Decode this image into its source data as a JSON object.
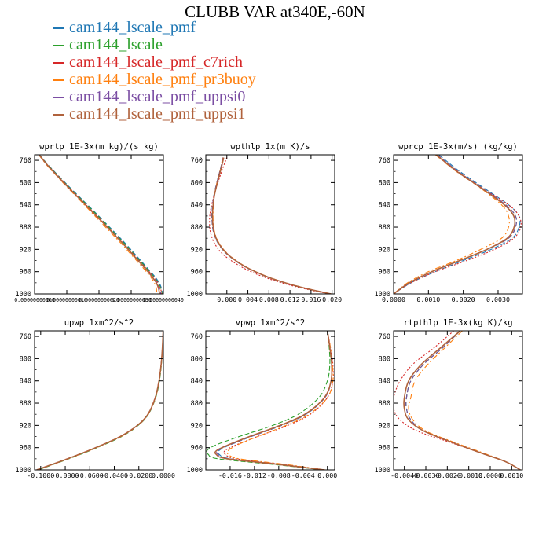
{
  "page_title": "CLUBB VAR at340E,-60N",
  "colors": {
    "cam144_lscale_pmf": "#1f77b4",
    "cam144_lscale": "#2ca02c",
    "cam144_lscale_pmf_c7rich": "#d62728",
    "cam144_lscale_pmf_pr3buoy": "#ff7f0e",
    "cam144_lscale_pmf_uppsi0": "#7b4ea3",
    "cam144_lscale_pmf_uppsi1": "#b0623c"
  },
  "legend": [
    {
      "name": "cam144_lscale_pmf",
      "color": "#1f77b4",
      "style": "dashed"
    },
    {
      "name": "cam144_lscale",
      "color": "#2ca02c",
      "style": "dashed"
    },
    {
      "name": "cam144_lscale_pmf_c7rich",
      "color": "#d62728",
      "style": "dotted"
    },
    {
      "name": "cam144_lscale_pmf_pr3buoy",
      "color": "#ff7f0e",
      "style": "dashdot"
    },
    {
      "name": "cam144_lscale_pmf_uppsi0",
      "color": "#7b4ea3",
      "style": "dashed"
    },
    {
      "name": "cam144_lscale_pmf_uppsi1",
      "color": "#b0623c",
      "style": "solid"
    }
  ],
  "chart_data": [
    {
      "type": "line",
      "title": "wprtp  1E-3x(m kg)/(s kg)",
      "xlim": [
        0.0,
        4e-10
      ],
      "ylim": [
        1000,
        750
      ],
      "xticks": [
        0.0,
        1e-10,
        2e-10,
        3e-10,
        4e-10
      ],
      "xtick_labels": [
        "0.00000000000",
        "0.00000000010",
        "0.00000000020",
        "0.00000000030",
        "0.00000000040"
      ],
      "yticks": [
        760,
        800,
        840,
        880,
        920,
        960,
        1000
      ],
      "ytick_labels": [
        "760",
        "800",
        "840",
        "880",
        "920",
        "960",
        "1000"
      ],
      "y": [
        750,
        770,
        790,
        810,
        830,
        850,
        870,
        890,
        910,
        930,
        950,
        960,
        970,
        980,
        990,
        1000
      ],
      "series": [
        {
          "name": "cam144_lscale_pmf",
          "x": [
            1.5e-11,
            4.5e-11,
            7.8e-11,
            1.12e-10,
            1.47e-10,
            1.82e-10,
            2.16e-10,
            2.5e-10,
            2.83e-10,
            3.14e-10,
            3.45e-10,
            3.6e-10,
            3.75e-10,
            3.87e-10,
            3.94e-10,
            3.97e-10
          ]
        },
        {
          "name": "cam144_lscale",
          "x": [
            1.5e-11,
            4.4e-11,
            7.7e-11,
            1.1e-10,
            1.45e-10,
            1.8e-10,
            2.14e-10,
            2.47e-10,
            2.8e-10,
            3.11e-10,
            3.42e-10,
            3.57e-10,
            3.72e-10,
            3.84e-10,
            3.92e-10,
            3.96e-10
          ]
        },
        {
          "name": "cam144_lscale_pmf_c7rich",
          "x": [
            1.4e-11,
            4.3e-11,
            7.6e-11,
            1.09e-10,
            1.43e-10,
            1.77e-10,
            2.11e-10,
            2.44e-10,
            2.77e-10,
            3.09e-10,
            3.4e-10,
            3.56e-10,
            3.71e-10,
            3.83e-10,
            3.91e-10,
            3.95e-10
          ]
        },
        {
          "name": "cam144_lscale_pmf_pr3buoy",
          "x": [
            1.3e-11,
            4e-11,
            7.2e-11,
            1.04e-10,
            1.38e-10,
            1.71e-10,
            2.04e-10,
            2.37e-10,
            2.7e-10,
            3.01e-10,
            3.32e-10,
            3.47e-10,
            3.61e-10,
            3.72e-10,
            3.78e-10,
            3.8e-10
          ]
        },
        {
          "name": "cam144_lscale_pmf_uppsi0",
          "x": [
            1.4e-11,
            4.3e-11,
            7.5e-11,
            1.08e-10,
            1.42e-10,
            1.76e-10,
            2.1e-10,
            2.43e-10,
            2.76e-10,
            3.07e-10,
            3.38e-10,
            3.53e-10,
            3.68e-10,
            3.8e-10,
            3.88e-10,
            3.92e-10
          ]
        },
        {
          "name": "cam144_lscale_pmf_uppsi1",
          "x": [
            1.4e-11,
            4.2e-11,
            7.4e-11,
            1.07e-10,
            1.41e-10,
            1.75e-10,
            2.09e-10,
            2.42e-10,
            2.75e-10,
            3.06e-10,
            3.37e-10,
            3.52e-10,
            3.66e-10,
            3.78e-10,
            3.85e-10,
            3.88e-10
          ]
        }
      ]
    },
    {
      "type": "line",
      "title": "wpthlp  1x(m K)/s",
      "xlim": [
        -0.004,
        0.0205
      ],
      "ylim": [
        1000,
        750
      ],
      "xticks": [
        0.0,
        0.004,
        0.008,
        0.012,
        0.016,
        0.02
      ],
      "xtick_labels": [
        "0.000",
        "0.004",
        "0.008",
        "0.012",
        "0.016",
        "0.020"
      ],
      "yticks": [
        760,
        800,
        840,
        880,
        920,
        960,
        1000
      ],
      "ytick_labels": [
        "760",
        "800",
        "840",
        "880",
        "920",
        "960",
        "1000"
      ],
      "y": [
        755,
        775,
        800,
        825,
        850,
        870,
        890,
        910,
        930,
        950,
        965,
        975,
        985,
        995,
        1000
      ],
      "series": [
        {
          "name": "cam144_lscale_pmf",
          "x": [
            -0.0007,
            -0.0012,
            -0.0019,
            -0.0025,
            -0.0028,
            -0.0028,
            -0.0025,
            -0.0016,
            0.0002,
            0.0032,
            0.0065,
            0.0093,
            0.0128,
            0.0172,
            0.0198
          ]
        },
        {
          "name": "cam144_lscale",
          "x": [
            -0.0007,
            -0.0012,
            -0.0019,
            -0.0025,
            -0.0028,
            -0.0028,
            -0.0025,
            -0.0016,
            0.0002,
            0.0032,
            0.0065,
            0.0093,
            0.0128,
            0.0172,
            0.0198
          ]
        },
        {
          "name": "cam144_lscale_pmf_c7rich",
          "x": [
            0.0,
            -0.0008,
            -0.0017,
            -0.0025,
            -0.0031,
            -0.0033,
            -0.0031,
            -0.0023,
            -0.0006,
            0.0025,
            0.0058,
            0.0087,
            0.0123,
            0.0168,
            0.0196
          ]
        },
        {
          "name": "cam144_lscale_pmf_pr3buoy",
          "x": [
            -0.0008,
            -0.0012,
            -0.0019,
            -0.0024,
            -0.0026,
            -0.0026,
            -0.0023,
            -0.0014,
            0.0004,
            0.0034,
            0.0067,
            0.0095,
            0.013,
            0.0173,
            0.0199
          ]
        },
        {
          "name": "cam144_lscale_pmf_uppsi0",
          "x": [
            -0.0007,
            -0.0012,
            -0.0019,
            -0.0025,
            -0.0028,
            -0.0028,
            -0.0025,
            -0.0016,
            0.0002,
            0.0032,
            0.0065,
            0.0093,
            0.0128,
            0.0172,
            0.0198
          ]
        },
        {
          "name": "cam144_lscale_pmf_uppsi1",
          "x": [
            -0.0006,
            -0.0011,
            -0.0018,
            -0.0024,
            -0.0027,
            -0.0027,
            -0.0024,
            -0.0015,
            0.0003,
            0.0033,
            0.0066,
            0.0094,
            0.0129,
            0.0173,
            0.0198
          ]
        }
      ]
    },
    {
      "type": "line",
      "title": "wprcp  1E-3x(m/s) (kg/kg)",
      "xlim": [
        0.0,
        0.0037
      ],
      "ylim": [
        1000,
        750
      ],
      "xticks": [
        0.0,
        0.001,
        0.002,
        0.003
      ],
      "xtick_labels": [
        "0.0000",
        "0.0010",
        "0.0020",
        "0.0030"
      ],
      "yticks": [
        760,
        800,
        840,
        880,
        920,
        960,
        1000
      ],
      "ytick_labels": [
        "760",
        "800",
        "840",
        "880",
        "920",
        "960",
        "1000"
      ],
      "y": [
        750,
        780,
        810,
        840,
        860,
        880,
        900,
        920,
        940,
        960,
        980,
        1000
      ],
      "series": [
        {
          "name": "cam144_lscale_pmf",
          "x": [
            0.0013,
            0.0019,
            0.0026,
            0.0033,
            0.0036,
            0.0036,
            0.0034,
            0.0028,
            0.002,
            0.0012,
            0.0005,
            0.0
          ]
        },
        {
          "name": "cam144_lscale",
          "x": [
            0.00125,
            0.00185,
            0.00255,
            0.00322,
            0.0035,
            0.0035,
            0.0033,
            0.0027,
            0.0019,
            0.0011,
            0.00045,
            0.0
          ]
        },
        {
          "name": "cam144_lscale_pmf_c7rich",
          "x": [
            0.00125,
            0.00185,
            0.00255,
            0.0033,
            0.0036,
            0.00365,
            0.00345,
            0.0029,
            0.0021,
            0.0012,
            0.0005,
            0.0
          ]
        },
        {
          "name": "cam144_lscale_pmf_pr3buoy",
          "x": [
            0.0012,
            0.0018,
            0.0025,
            0.0031,
            0.0033,
            0.0033,
            0.0031,
            0.0025,
            0.0018,
            0.001,
            0.0004,
            0.0
          ]
        },
        {
          "name": "cam144_lscale_pmf_uppsi0",
          "x": [
            0.00125,
            0.00185,
            0.00255,
            0.00322,
            0.0035,
            0.0035,
            0.0033,
            0.0027,
            0.0019,
            0.0011,
            0.00045,
            0.0
          ]
        },
        {
          "name": "cam144_lscale_pmf_uppsi1",
          "x": [
            0.00122,
            0.00182,
            0.00252,
            0.00318,
            0.00345,
            0.00346,
            0.00326,
            0.00268,
            0.0019,
            0.0011,
            0.00045,
            0.0
          ]
        }
      ]
    },
    {
      "type": "line",
      "title": "upwp  1xm^2/s^2",
      "xlim": [
        -0.105,
        0.0
      ],
      "ylim": [
        1000,
        750
      ],
      "xticks": [
        -0.1,
        -0.08,
        -0.06,
        -0.04,
        -0.02,
        0.0
      ],
      "xtick_labels": [
        "-0.1000",
        "-0.0800",
        "-0.0600",
        "-0.0400",
        "-0.0200",
        "0.0000"
      ],
      "yticks": [
        760,
        800,
        840,
        880,
        920,
        960,
        1000
      ],
      "ytick_labels": [
        "760",
        "800",
        "840",
        "880",
        "920",
        "960",
        "1000"
      ],
      "y": [
        750,
        780,
        810,
        840,
        870,
        900,
        920,
        940,
        960,
        980,
        1000
      ],
      "series": [
        {
          "name": "cam144_lscale_pmf",
          "x": [
            -0.0002,
            -0.0008,
            -0.0018,
            -0.0035,
            -0.0065,
            -0.0125,
            -0.021,
            -0.035,
            -0.055,
            -0.078,
            -0.103
          ]
        },
        {
          "name": "cam144_lscale",
          "x": [
            -0.0002,
            -0.0007,
            -0.0016,
            -0.0032,
            -0.0062,
            -0.0122,
            -0.0205,
            -0.034,
            -0.054,
            -0.077,
            -0.102
          ]
        },
        {
          "name": "cam144_lscale_pmf_c7rich",
          "x": [
            -0.0002,
            -0.0008,
            -0.0019,
            -0.0037,
            -0.0068,
            -0.0128,
            -0.0213,
            -0.0355,
            -0.0555,
            -0.0785,
            -0.1035
          ]
        },
        {
          "name": "cam144_lscale_pmf_pr3buoy",
          "x": [
            -0.0002,
            -0.0007,
            -0.0017,
            -0.0034,
            -0.0064,
            -0.0123,
            -0.0207,
            -0.0345,
            -0.0545,
            -0.0775,
            -0.1025
          ]
        },
        {
          "name": "cam144_lscale_pmf_uppsi0",
          "x": [
            -0.0002,
            -0.0008,
            -0.0018,
            -0.0035,
            -0.0065,
            -0.0125,
            -0.021,
            -0.035,
            -0.055,
            -0.078,
            -0.103
          ]
        },
        {
          "name": "cam144_lscale_pmf_uppsi1",
          "x": [
            -0.0002,
            -0.0008,
            -0.0018,
            -0.0036,
            -0.0066,
            -0.0126,
            -0.0212,
            -0.0352,
            -0.0552,
            -0.0782,
            -0.1032
          ]
        }
      ]
    },
    {
      "type": "line",
      "title": "vpwp  1xm^2/s^2",
      "xlim": [
        -0.02,
        0.0012
      ],
      "ylim": [
        1000,
        750
      ],
      "xticks": [
        -0.016,
        -0.012,
        -0.008,
        -0.004,
        0.0
      ],
      "xtick_labels": [
        "-0.016",
        "-0.012",
        "-0.008",
        "-0.004",
        "0.000"
      ],
      "yticks": [
        760,
        800,
        840,
        880,
        920,
        960,
        1000
      ],
      "ytick_labels": [
        "760",
        "800",
        "840",
        "880",
        "920",
        "960",
        "1000"
      ],
      "y": [
        750,
        780,
        810,
        840,
        870,
        900,
        920,
        940,
        955,
        965,
        972,
        980,
        990,
        1000
      ],
      "series": [
        {
          "name": "cam144_lscale_pmf",
          "x": [
            0.0,
            0.0004,
            0.0007,
            0.0006,
            -0.0004,
            -0.0035,
            -0.0075,
            -0.0125,
            -0.016,
            -0.0178,
            -0.0178,
            -0.016,
            -0.008,
            -0.0005
          ]
        },
        {
          "name": "cam144_lscale",
          "x": [
            0.0,
            0.0003,
            0.0004,
            0.0,
            -0.0014,
            -0.0048,
            -0.009,
            -0.0145,
            -0.0183,
            -0.0198,
            -0.0196,
            -0.018,
            -0.009,
            -0.0008
          ]
        },
        {
          "name": "cam144_lscale_pmf_c7rich",
          "x": [
            0.0,
            0.0005,
            0.0009,
            0.0009,
            0.0,
            -0.0028,
            -0.0065,
            -0.0115,
            -0.015,
            -0.0168,
            -0.0168,
            -0.015,
            -0.0075,
            -0.0003
          ]
        },
        {
          "name": "cam144_lscale_pmf_pr3buoy",
          "x": [
            0.0,
            0.0005,
            0.0008,
            0.0009,
            0.0,
            -0.003,
            -0.0068,
            -0.0115,
            -0.0148,
            -0.0163,
            -0.0163,
            -0.0145,
            -0.007,
            -0.0003
          ]
        },
        {
          "name": "cam144_lscale_pmf_uppsi0",
          "x": [
            0.0,
            0.0004,
            0.0007,
            0.0006,
            -0.0004,
            -0.0036,
            -0.0076,
            -0.0126,
            -0.0161,
            -0.018,
            -0.018,
            -0.0162,
            -0.008,
            -0.0005
          ]
        },
        {
          "name": "cam144_lscale_pmf_uppsi1",
          "x": [
            0.0,
            0.0004,
            0.0007,
            0.0006,
            -0.0005,
            -0.0037,
            -0.0078,
            -0.0128,
            -0.0163,
            -0.0182,
            -0.0183,
            -0.0165,
            -0.0082,
            -0.0005
          ]
        }
      ]
    },
    {
      "type": "line",
      "title": "rtpthlp  1E-3x(kg K)/kg",
      "xlim": [
        -0.0045,
        0.0015
      ],
      "ylim": [
        1000,
        750
      ],
      "xticks": [
        -0.004,
        -0.003,
        -0.002,
        -0.001,
        0.0,
        0.001
      ],
      "xtick_labels": [
        "-0.0040",
        "-0.0030",
        "-0.0020",
        "-0.0010",
        "0.0000",
        "0.0010"
      ],
      "yticks": [
        760,
        800,
        840,
        880,
        920,
        960,
        1000
      ],
      "ytick_labels": [
        "760",
        "800",
        "840",
        "880",
        "920",
        "960",
        "1000"
      ],
      "y": [
        750,
        780,
        810,
        840,
        870,
        890,
        910,
        930,
        950,
        970,
        985,
        1000
      ],
      "series": [
        {
          "name": "cam144_lscale_pmf",
          "x": [
            -0.0014,
            -0.0022,
            -0.0031,
            -0.0037,
            -0.0039,
            -0.0039,
            -0.0037,
            -0.0031,
            -0.0018,
            -0.0004,
            0.0007,
            0.0014
          ]
        },
        {
          "name": "cam144_lscale",
          "x": [
            -0.0014,
            -0.0022,
            -0.0031,
            -0.0037,
            -0.0039,
            -0.0039,
            -0.0037,
            -0.0031,
            -0.0018,
            -0.0004,
            0.0007,
            0.0014
          ]
        },
        {
          "name": "cam144_lscale_pmf_c7rich",
          "x": [
            -0.0017,
            -0.0026,
            -0.0036,
            -0.0042,
            -0.0045,
            -0.0045,
            -0.0042,
            -0.0034,
            -0.0019,
            -0.0004,
            0.0007,
            0.0014
          ]
        },
        {
          "name": "cam144_lscale_pmf_pr3buoy",
          "x": [
            -0.0013,
            -0.0021,
            -0.0029,
            -0.0035,
            -0.0037,
            -0.0038,
            -0.0036,
            -0.003,
            -0.0017,
            -0.0003,
            0.0007,
            0.0014
          ]
        },
        {
          "name": "cam144_lscale_pmf_uppsi0",
          "x": [
            -0.0014,
            -0.0022,
            -0.0031,
            -0.0037,
            -0.0039,
            -0.0039,
            -0.0037,
            -0.0031,
            -0.0018,
            -0.0004,
            0.0007,
            0.0014
          ]
        },
        {
          "name": "cam144_lscale_pmf_uppsi1",
          "x": [
            -0.0014,
            -0.0023,
            -0.0032,
            -0.0038,
            -0.004,
            -0.004,
            -0.0038,
            -0.0031,
            -0.0018,
            -0.0004,
            0.0007,
            0.0014
          ]
        }
      ]
    }
  ]
}
